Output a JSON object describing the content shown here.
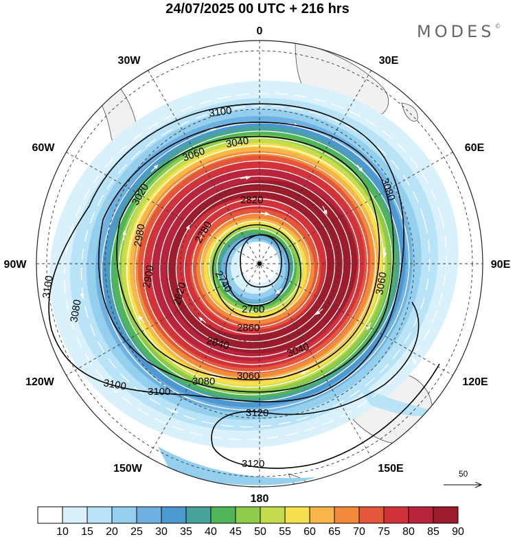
{
  "title": "24/07/2025  00 UTC  + 216 hrs",
  "brand": "MODES",
  "brand_mark": "©",
  "longitude_labels": {
    "lon_0": "0",
    "lon_30e": "30E",
    "lon_60e": "60E",
    "lon_90e": "90E",
    "lon_120e": "120E",
    "lon_150e": "150E",
    "lon_180": "180",
    "lon_150w": "150W",
    "lon_120w": "120W",
    "lon_90w": "90W",
    "lon_60w": "60W",
    "lon_30w": "30W"
  },
  "contour_labels": [
    "3100",
    "3060",
    "3040",
    "3020",
    "2980",
    "2900",
    "2860",
    "2820",
    "2780",
    "2740",
    "2760",
    "2620",
    "2840",
    "3080",
    "3100",
    "3120",
    "3120",
    "3100",
    "3100",
    "3080",
    "3060",
    "3040",
    "3080",
    "3060"
  ],
  "wind_speed_scale": {
    "levels": [
      "10",
      "15",
      "20",
      "25",
      "30",
      "35",
      "40",
      "45",
      "50",
      "55",
      "60",
      "65",
      "70",
      "75",
      "80",
      "85",
      "90"
    ],
    "colors": [
      "#ffffff",
      "#d9f1fb",
      "#b9e3f6",
      "#94cfee",
      "#6fb2e1",
      "#4e98d2",
      "#4aa39a",
      "#4fb556",
      "#8fcb4a",
      "#c6dc4e",
      "#f6e04e",
      "#f7b54a",
      "#f28a3c",
      "#e4573a",
      "#d2323a",
      "#b8243c",
      "#9c1c2c"
    ]
  },
  "reference_vector": {
    "value": "50"
  }
}
